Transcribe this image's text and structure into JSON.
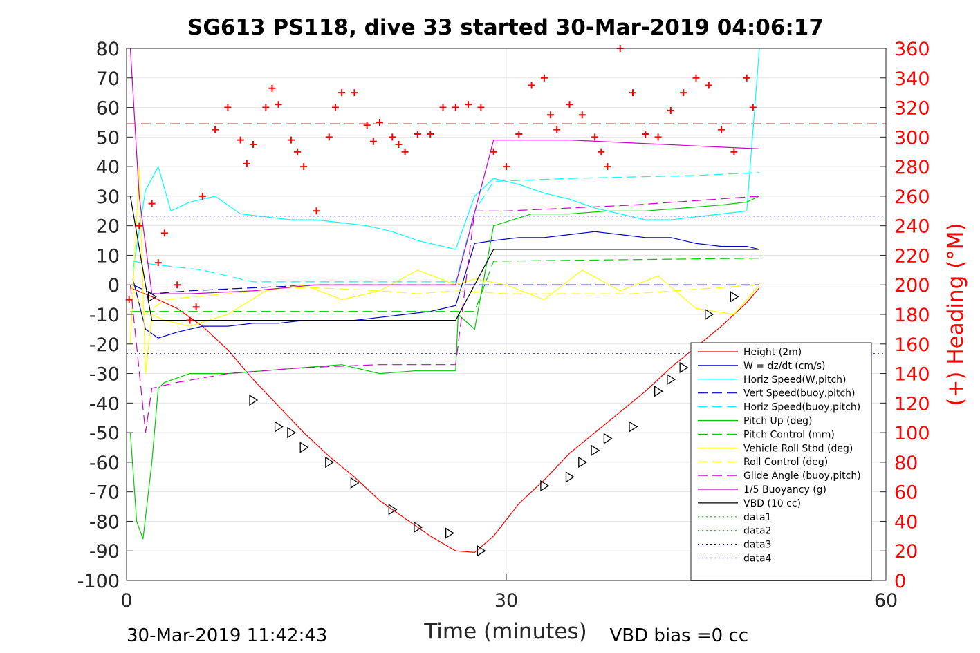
{
  "chart_data": {
    "type": "line",
    "title": "SG613 PS118, dive 33 started 30-Mar-2019 04:06:17",
    "xlabel": "Time (minutes)",
    "ylabel_right": "(+) Heading (°M)",
    "xlim": [
      0,
      60
    ],
    "ylim": [
      -100,
      80
    ],
    "ylim_right": [
      0,
      360
    ],
    "xticks": [
      0,
      30,
      60
    ],
    "yticks": [
      -100,
      -90,
      -80,
      -70,
      -60,
      -50,
      -40,
      -30,
      -20,
      -10,
      0,
      10,
      20,
      30,
      40,
      50,
      60,
      70,
      80
    ],
    "yticks_right": [
      0,
      20,
      40,
      60,
      80,
      100,
      120,
      140,
      160,
      180,
      200,
      220,
      240,
      260,
      280,
      300,
      320,
      340,
      360
    ],
    "grid": true,
    "legend_position": "lower-right",
    "footer_left": "30-Mar-2019 11:42:43",
    "footer_right": "VBD bias =0 cc",
    "series": [
      {
        "name": "Height (2m)",
        "color": "#ff0000",
        "style": "solid",
        "x": [
          0.3,
          2,
          4,
          6,
          8,
          10,
          12,
          14,
          16,
          18,
          20,
          22,
          24,
          26,
          27.5,
          29,
          31,
          33,
          35,
          37,
          39,
          41,
          43,
          45,
          47,
          49,
          50
        ],
        "y": [
          -1,
          -4,
          -8,
          -14,
          -22,
          -32,
          -41,
          -50,
          -58,
          -65,
          -73,
          -79,
          -85,
          -90,
          -90.5,
          -85,
          -74,
          -66,
          -57,
          -50,
          -43,
          -36,
          -28,
          -21,
          -14,
          -6,
          -1
        ]
      },
      {
        "name": "W = dz/dt (cm/s)",
        "color": "#0000cc",
        "style": "solid",
        "x": [
          0.5,
          1.5,
          2.5,
          4,
          6,
          8,
          10,
          12,
          14,
          16,
          18,
          20,
          22,
          24,
          26,
          27.5,
          29,
          31,
          33,
          35,
          37,
          39,
          41,
          43,
          45,
          47,
          49,
          50
        ],
        "y": [
          2,
          -15,
          -18,
          -16,
          -14,
          -14,
          -13,
          -13,
          -12,
          -12,
          -12,
          -11,
          -10,
          -9,
          -7,
          14,
          15,
          16,
          16,
          17,
          18,
          17,
          16,
          16,
          14,
          13,
          13,
          12
        ]
      },
      {
        "name": "Horiz Speed(W,pitch)",
        "color": "#00ffff",
        "style": "solid",
        "x": [
          0.5,
          1.5,
          2.5,
          3.5,
          5,
          7,
          9,
          11,
          13,
          15,
          17,
          19,
          21,
          23,
          25,
          26,
          27.5,
          29,
          31,
          33,
          35,
          37,
          39,
          41,
          43,
          45,
          47,
          49,
          50
        ],
        "y": [
          5,
          32,
          40,
          25,
          28,
          30,
          24,
          23,
          22,
          22,
          21,
          20,
          18,
          15,
          13,
          12,
          30,
          36,
          34,
          31,
          29,
          26,
          24,
          22,
          22,
          23,
          24,
          25,
          80
        ]
      },
      {
        "name": "Vert Speed(buoy,pitch)",
        "color": "#0000cc",
        "style": "dashed",
        "x": [
          0.5,
          2,
          5,
          10,
          15,
          20,
          26,
          27.5,
          30,
          40,
          50
        ],
        "y": [
          0,
          -3,
          -2,
          -1,
          0,
          0,
          0,
          0,
          0,
          0,
          0
        ]
      },
      {
        "name": "Horiz Speed(buoy,pitch)",
        "color": "#00ffff",
        "style": "dashed",
        "x": [
          0.5,
          2,
          4,
          6,
          8,
          10,
          26,
          27.5,
          29,
          35,
          45,
          50
        ],
        "y": [
          8,
          7,
          6,
          5,
          3,
          1,
          1,
          25,
          35,
          36,
          37,
          38
        ]
      },
      {
        "name": "Pitch Up (deg)",
        "color": "#00cc00",
        "style": "solid",
        "x": [
          0.3,
          0.8,
          1.3,
          2,
          2.5,
          3,
          5,
          8,
          11,
          14,
          17,
          20,
          23,
          26,
          26.2,
          27.5,
          29,
          32,
          35,
          38,
          41,
          44,
          47,
          49,
          50
        ],
        "y": [
          -50,
          -80,
          -86,
          -60,
          -35,
          -33,
          -30,
          -30,
          -29,
          -28,
          -27,
          -30,
          -29,
          -29,
          -10,
          -15,
          20,
          24,
          24,
          25,
          25,
          26,
          27,
          28,
          30
        ]
      },
      {
        "name": "Pitch Control (mm)",
        "color": "#00cc00",
        "style": "dashed",
        "x": [
          0.3,
          2,
          26,
          27.5,
          29,
          50
        ],
        "y": [
          -9,
          -9,
          -9,
          -9,
          8,
          9
        ]
      },
      {
        "name": "Vehicle Roll Stbd (deg)",
        "color": "#ffff00",
        "style": "solid",
        "x": [
          0.3,
          1,
          1.5,
          2,
          3,
          5,
          8,
          11,
          14,
          17,
          20,
          23,
          26,
          27.5,
          30,
          33,
          36,
          39,
          42,
          45,
          48,
          50
        ],
        "y": [
          -20,
          40,
          -30,
          -10,
          -12,
          -14,
          -10,
          -2,
          0,
          -5,
          -2,
          5,
          0,
          2,
          0,
          -5,
          5,
          -2,
          3,
          -8,
          -10,
          0
        ]
      },
      {
        "name": "Roll Control (deg)",
        "color": "#ffff00",
        "style": "dashed",
        "x": [
          0.3,
          1.5,
          3,
          13,
          15,
          20,
          23,
          26,
          30,
          40,
          50
        ],
        "y": [
          0,
          -10,
          -5,
          -1,
          -1,
          -2,
          -3,
          -2,
          -3,
          -3,
          0
        ]
      },
      {
        "name": "Glide Angle (buoy,pitch)",
        "color": "#cc00cc",
        "style": "dashed",
        "x": [
          0.3,
          1.5,
          2,
          4,
          8,
          14,
          20,
          26,
          27.5,
          30,
          40,
          50
        ],
        "y": [
          0,
          -50,
          -35,
          -33,
          -30,
          -28,
          -27,
          -27,
          25,
          25,
          27,
          30
        ]
      },
      {
        "name": "1/5 Buoyancy (g)",
        "color": "#cc00cc",
        "style": "solid",
        "x": [
          0.3,
          1,
          2,
          5,
          10,
          15,
          20,
          26,
          29,
          35,
          40,
          45,
          50
        ],
        "y": [
          80,
          30,
          -3,
          -3,
          -2,
          0,
          0,
          0,
          49,
          49,
          48,
          47,
          46
        ]
      },
      {
        "name": "VBD (10 cc)",
        "color": "#000000",
        "style": "solid",
        "x": [
          0.3,
          1.5,
          2,
          26,
          29,
          50
        ],
        "y": [
          30,
          0,
          -12,
          -12,
          12,
          12
        ]
      },
      {
        "name": "data1",
        "color": "#00cc00",
        "style": "dotted",
        "x": [],
        "y": []
      },
      {
        "name": "data2",
        "color": "#00cc00",
        "style": "dotted",
        "x": [],
        "y": []
      },
      {
        "name": "data3",
        "color": "#0000cc",
        "style": "dotted",
        "x": [
          0,
          60
        ],
        "y": [
          23.3,
          23.3
        ]
      },
      {
        "name": "data4",
        "color": "#0000cc",
        "style": "dotted",
        "x": [
          0,
          60
        ],
        "y": [
          -23.3,
          -23.3
        ]
      }
    ],
    "heading_reference": 309,
    "heading": {
      "x": [
        0.2,
        1,
        2,
        2.5,
        3,
        4,
        5,
        5.5,
        6,
        7,
        8,
        9,
        9.5,
        10,
        11,
        11.5,
        12,
        13,
        13.5,
        14,
        15,
        16,
        16.5,
        17,
        18,
        19,
        19.5,
        20,
        21,
        21.5,
        22,
        23,
        24,
        25,
        26,
        27,
        28,
        29,
        30,
        31,
        32,
        33,
        33.5,
        34,
        35,
        36,
        37,
        37.5,
        38,
        39,
        40,
        41,
        42,
        43,
        44,
        45,
        46,
        47,
        48,
        49,
        49.5
      ],
      "y": [
        190,
        240,
        255,
        215,
        235,
        200,
        176,
        185,
        260,
        305,
        320,
        298,
        282,
        295,
        320,
        333,
        322,
        298,
        290,
        280,
        250,
        300,
        320,
        330,
        330,
        308,
        297,
        310,
        300,
        295,
        290,
        302,
        302,
        320,
        320,
        322,
        320,
        290,
        280,
        302,
        335,
        340,
        315,
        305,
        322,
        315,
        300,
        290,
        280,
        360,
        330,
        302,
        300,
        318,
        330,
        340,
        335,
        305,
        290,
        340,
        320
      ]
    },
    "heading_color": "#ff0000",
    "triangles_x": [
      2,
      10,
      12,
      13,
      14,
      16,
      18,
      21,
      23,
      25.5,
      28,
      33,
      35,
      36,
      37,
      38,
      40,
      42,
      43,
      44,
      46,
      48
    ],
    "triangles_y": [
      -4,
      -39,
      -48,
      -50,
      -55,
      -60,
      -67,
      -76,
      -82,
      -84,
      -90,
      -68,
      -65,
      -60,
      -56,
      -52,
      -48,
      -36,
      -32,
      -28,
      -10,
      -4
    ]
  }
}
